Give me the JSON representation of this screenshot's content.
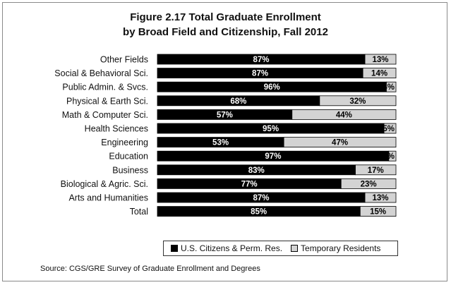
{
  "chart_data": {
    "type": "bar",
    "orientation": "horizontal",
    "stacked": true,
    "title": "Figure 2.17  Total Graduate Enrollment",
    "subtitle": "by Broad Field and Citizenship, Fall 2012",
    "categories": [
      "Other Fields",
      "Social & Behavioral Sci.",
      "Public Admin. & Svcs.",
      "Physical & Earth Sci.",
      "Math & Computer Sci.",
      "Health Sciences",
      "Engineering",
      "Education",
      "Business",
      "Biological & Agric. Sci.",
      "Arts and Humanities",
      "Total"
    ],
    "series": [
      {
        "name": "U.S. Citizens & Perm. Res.",
        "values": [
          87,
          87,
          96,
          68,
          57,
          95,
          53,
          97,
          83,
          77,
          87,
          85
        ],
        "color": "#000000"
      },
      {
        "name": "Temporary Residents",
        "values": [
          13,
          14,
          4,
          32,
          44,
          5,
          47,
          3,
          17,
          23,
          13,
          15
        ],
        "color": "#d3d3d3"
      }
    ],
    "value_suffix": "%",
    "xlim": [
      0,
      100
    ],
    "grid": false,
    "legend_position": "bottom"
  },
  "source": "Source: CGS/GRE Survey of Graduate Enrollment and Degrees"
}
